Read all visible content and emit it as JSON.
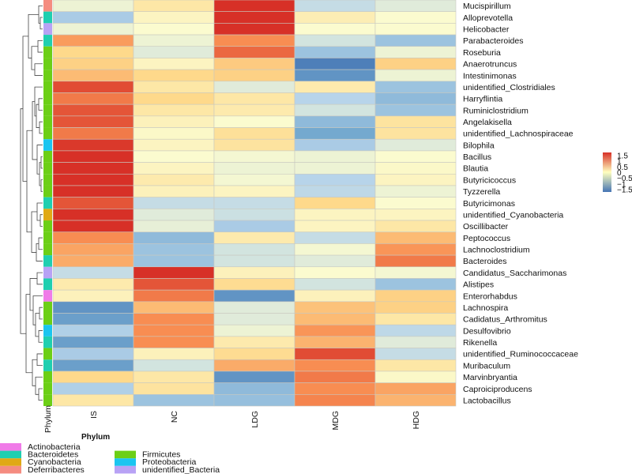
{
  "chart_data": {
    "type": "heatmap",
    "title": "",
    "columns": [
      "IS",
      "NC",
      "LDG",
      "MDG",
      "HDG"
    ],
    "rows": [
      {
        "label": "Mucispirillum",
        "phylum": "Deferribacteres",
        "values": [
          -0.1,
          0.3,
          1.5,
          -0.4,
          -0.2
        ]
      },
      {
        "label": "Alloprevotella",
        "phylum": "Bacteroidetes",
        "values": [
          -0.6,
          0.1,
          1.55,
          0.2,
          0.0
        ]
      },
      {
        "label": "Helicobacter",
        "phylum": "unidentified_Bacteria",
        "values": [
          -0.1,
          0.0,
          1.6,
          0.0,
          0.0
        ]
      },
      {
        "label": "Parabacteroides",
        "phylum": "Bacteroidetes",
        "values": [
          0.9,
          -0.1,
          1.0,
          -0.3,
          -0.7
        ]
      },
      {
        "label": "Roseburia",
        "phylum": "Firmicutes",
        "values": [
          0.5,
          -0.2,
          1.2,
          -0.7,
          -0.1
        ]
      },
      {
        "label": "Anaerotruncus",
        "phylum": "Firmicutes",
        "values": [
          0.55,
          0.1,
          0.6,
          -1.4,
          0.55
        ]
      },
      {
        "label": "Intestinimonas",
        "phylum": "Firmicutes",
        "values": [
          0.7,
          0.5,
          0.55,
          -1.2,
          -0.1
        ]
      },
      {
        "label": "unidentified_Clostridiales",
        "phylum": "Firmicutes",
        "values": [
          1.35,
          0.3,
          -0.2,
          0.25,
          -0.7
        ]
      },
      {
        "label": "Harryflintia",
        "phylum": "Firmicutes",
        "values": [
          1.1,
          0.5,
          0.3,
          -0.5,
          -0.8
        ]
      },
      {
        "label": "Ruminiclostridium",
        "phylum": "Firmicutes",
        "values": [
          1.3,
          0.3,
          0.25,
          -0.3,
          -0.7
        ]
      },
      {
        "label": "Angelakisella",
        "phylum": "Firmicutes",
        "values": [
          1.3,
          0.15,
          0.0,
          -0.8,
          0.35
        ]
      },
      {
        "label": "unidentified_Lachnospiraceae",
        "phylum": "Firmicutes",
        "values": [
          1.1,
          0.05,
          0.4,
          -1.0,
          0.35
        ]
      },
      {
        "label": "Bilophila",
        "phylum": "Proteobacteria",
        "values": [
          1.45,
          0.1,
          0.35,
          -0.6,
          -0.2
        ]
      },
      {
        "label": "Bacillus",
        "phylum": "Firmicutes",
        "values": [
          1.6,
          0.0,
          -0.05,
          -0.1,
          0.0
        ]
      },
      {
        "label": "Blautia",
        "phylum": "Firmicutes",
        "values": [
          1.6,
          0.1,
          -0.1,
          -0.1,
          0.05
        ]
      },
      {
        "label": "Butyricicoccus",
        "phylum": "Firmicutes",
        "values": [
          1.55,
          0.25,
          -0.05,
          -0.5,
          0.1
        ]
      },
      {
        "label": "Tyzzerella",
        "phylum": "Firmicutes",
        "values": [
          1.55,
          0.15,
          0.1,
          -0.45,
          -0.1
        ]
      },
      {
        "label": "Butyricimonas",
        "phylum": "Bacteroidetes",
        "values": [
          1.3,
          -0.4,
          -0.4,
          0.5,
          0.0
        ]
      },
      {
        "label": "unidentified_Cyanobacteria",
        "phylum": "Cyanobacteria",
        "values": [
          1.55,
          -0.2,
          -0.35,
          0.1,
          0.1
        ]
      },
      {
        "label": "Oscillibacter",
        "phylum": "Firmicutes",
        "values": [
          1.5,
          -0.15,
          -0.6,
          0.1,
          0.3
        ]
      },
      {
        "label": "Peptococcus",
        "phylum": "Firmicutes",
        "values": [
          1.0,
          -0.8,
          0.25,
          -0.4,
          0.7
        ]
      },
      {
        "label": "Lachnoclostridium",
        "phylum": "Firmicutes",
        "values": [
          0.85,
          -0.7,
          -0.3,
          -0.05,
          0.95
        ]
      },
      {
        "label": "Bacteroides",
        "phylum": "Bacteroidetes",
        "values": [
          0.8,
          -0.7,
          -0.3,
          -0.2,
          1.1
        ]
      },
      {
        "label": "Candidatus_Saccharimonas",
        "phylum": "unidentified_Bacteria",
        "values": [
          -0.4,
          1.55,
          0.15,
          0.0,
          -0.05
        ]
      },
      {
        "label": "Alistipes",
        "phylum": "Bacteroidetes",
        "values": [
          0.25,
          1.3,
          0.45,
          -0.3,
          -0.7
        ]
      },
      {
        "label": "Enterorhabdus",
        "phylum": "Actinobacteria",
        "values": [
          0.15,
          1.1,
          -1.2,
          0.15,
          0.55
        ]
      },
      {
        "label": "Lachnospira",
        "phylum": "Firmicutes",
        "values": [
          -1.2,
          0.7,
          -0.2,
          0.65,
          0.55
        ]
      },
      {
        "label": "Cadidatus_Arthromitus",
        "phylum": "Firmicutes",
        "values": [
          -1.1,
          1.0,
          -0.2,
          0.7,
          0.3
        ]
      },
      {
        "label": "Desulfovibrio",
        "phylum": "Proteobacteria",
        "values": [
          -0.55,
          1.0,
          -0.1,
          0.95,
          -0.45
        ]
      },
      {
        "label": "Rikenella",
        "phylum": "Bacteroidetes",
        "values": [
          -1.1,
          1.0,
          0.25,
          0.75,
          -0.2
        ]
      },
      {
        "label": "unidentified_Ruminococcaceae",
        "phylum": "Firmicutes",
        "values": [
          -0.6,
          0.15,
          0.45,
          1.35,
          -0.4
        ]
      },
      {
        "label": "Muribaculum",
        "phylum": "Bacteroidetes",
        "values": [
          -1.1,
          -0.3,
          0.8,
          1.0,
          0.3
        ]
      },
      {
        "label": "Marvinbryantia",
        "phylum": "Firmicutes",
        "values": [
          0.5,
          0.3,
          -1.2,
          1.1,
          0.05
        ]
      },
      {
        "label": "Caproiciproducens",
        "phylum": "Firmicutes",
        "values": [
          -0.55,
          0.35,
          -0.8,
          1.0,
          0.85
        ]
      },
      {
        "label": "Lactobacillus",
        "phylum": "Firmicutes",
        "values": [
          0.3,
          -0.7,
          -0.75,
          1.05,
          0.75
        ]
      }
    ],
    "color_scale": {
      "min": -1.5,
      "max": 1.5,
      "low_color": "#4575b4",
      "mid_color": "#ffffbf",
      "high_color": "#d73027",
      "ticks": [
        "1.5",
        "1",
        "0.5",
        "0",
        "−0.5",
        "−1",
        "−1.5"
      ],
      "tick_values": [
        1.5,
        1,
        0.5,
        0,
        -0.5,
        -1,
        -1.5
      ]
    },
    "annotation_label": "Phylum",
    "legend": {
      "title": "Phylum",
      "placement": "bottom-left",
      "entries": [
        {
          "name": "Actinobacteria",
          "color": "#f07be8"
        },
        {
          "name": "Bacteroidetes",
          "color": "#1fcfb0"
        },
        {
          "name": "Cyanobacteria",
          "color": "#e0a915"
        },
        {
          "name": "Deferribacteres",
          "color": "#f58c80"
        },
        {
          "name": "Firmicutes",
          "color": "#6ccf16"
        },
        {
          "name": "Proteobacteria",
          "color": "#1bc5f0"
        },
        {
          "name": "unidentified_Bacteria",
          "color": "#b8a2f5"
        }
      ]
    },
    "dendrogram": "row-clustered",
    "xlabel": "",
    "ylabel": ""
  }
}
